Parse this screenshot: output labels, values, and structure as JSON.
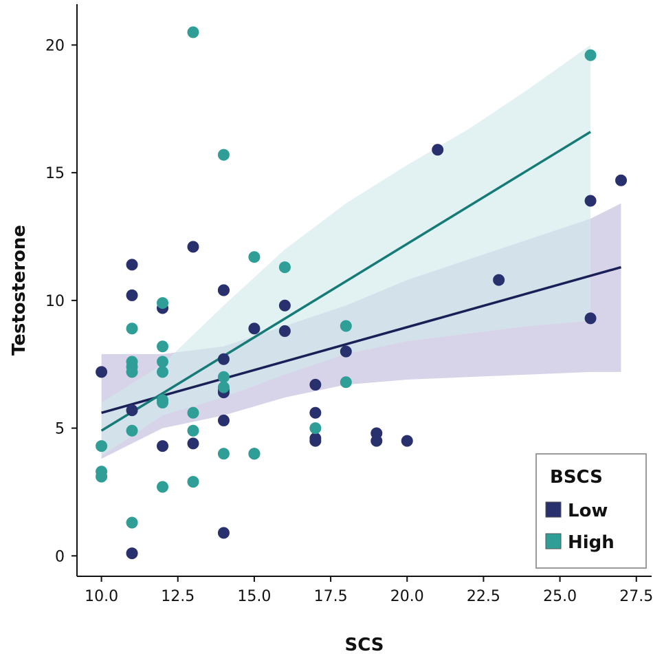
{
  "chart_data": {
    "type": "scatter",
    "title": "",
    "xlabel": "SCS",
    "ylabel": "Testosterone",
    "xlim": [
      9.2,
      28.0
    ],
    "ylim": [
      -0.8,
      21.6
    ],
    "xticks": [
      10.0,
      12.5,
      15.0,
      17.5,
      20.0,
      22.5,
      25.0,
      27.5
    ],
    "xtick_labels": [
      "10.0",
      "12.5",
      "15.0",
      "17.5",
      "20.0",
      "22.5",
      "25.0",
      "27.5"
    ],
    "yticks": [
      0,
      5,
      10,
      15,
      20
    ],
    "ytick_labels": [
      "0",
      "5",
      "10",
      "15",
      "20"
    ],
    "legend": {
      "title": "BSCS",
      "position": "bottom-right"
    },
    "series": [
      {
        "name": "Low",
        "color": "#29306e",
        "line_color": "#1a1f56",
        "band_color": "#c9c6e3",
        "points": [
          [
            10,
            7.2
          ],
          [
            11,
            11.4
          ],
          [
            11,
            10.2
          ],
          [
            11,
            5.7
          ],
          [
            11,
            0.1
          ],
          [
            12,
            9.7
          ],
          [
            12,
            4.3
          ],
          [
            13,
            12.1
          ],
          [
            13,
            4.4
          ],
          [
            14,
            10.4
          ],
          [
            14,
            10.4
          ],
          [
            14,
            7.7
          ],
          [
            14,
            6.5
          ],
          [
            14,
            6.4
          ],
          [
            14,
            5.3
          ],
          [
            14,
            0.9
          ],
          [
            15,
            8.9
          ],
          [
            15,
            4.0
          ],
          [
            16,
            9.8
          ],
          [
            16,
            8.8
          ],
          [
            17,
            6.7
          ],
          [
            17,
            5.6
          ],
          [
            17,
            4.5
          ],
          [
            17,
            4.6
          ],
          [
            18,
            8.0
          ],
          [
            19,
            4.8
          ],
          [
            19,
            4.5
          ],
          [
            20,
            4.5
          ],
          [
            21,
            15.9
          ],
          [
            23,
            10.8
          ],
          [
            26,
            13.9
          ],
          [
            26,
            9.3
          ],
          [
            27,
            14.7
          ]
        ],
        "fit": {
          "x": [
            10,
            27
          ],
          "y": [
            5.6,
            11.3
          ]
        },
        "band": {
          "x": [
            10,
            12,
            14,
            16,
            18,
            20,
            22,
            24,
            26,
            27
          ],
          "lower": [
            3.8,
            5.0,
            5.5,
            6.2,
            6.7,
            6.9,
            7.0,
            7.1,
            7.2,
            7.2
          ],
          "upper": [
            7.9,
            7.9,
            8.2,
            9.0,
            9.8,
            10.8,
            11.6,
            12.4,
            13.2,
            13.8
          ]
        }
      },
      {
        "name": "High",
        "color": "#2e9e97",
        "line_color": "#167a76",
        "band_color": "#cfe9ea",
        "points": [
          [
            10,
            4.3
          ],
          [
            10,
            3.3
          ],
          [
            10,
            3.1
          ],
          [
            11,
            8.9
          ],
          [
            11,
            7.6
          ],
          [
            11,
            7.4
          ],
          [
            11,
            7.2
          ],
          [
            11,
            4.9
          ],
          [
            11,
            1.3
          ],
          [
            12,
            9.9
          ],
          [
            12,
            8.2
          ],
          [
            12,
            7.6
          ],
          [
            12,
            7.2
          ],
          [
            12,
            6.1
          ],
          [
            12,
            6.0
          ],
          [
            12,
            2.7
          ],
          [
            13,
            20.5
          ],
          [
            13,
            5.6
          ],
          [
            13,
            4.9
          ],
          [
            13,
            2.9
          ],
          [
            14,
            15.7
          ],
          [
            14,
            7.0
          ],
          [
            14,
            6.6
          ],
          [
            14,
            4.0
          ],
          [
            15,
            11.7
          ],
          [
            15,
            4.0
          ],
          [
            16,
            11.3
          ],
          [
            17,
            5.0
          ],
          [
            18,
            9.0
          ],
          [
            18,
            6.8
          ],
          [
            26,
            19.6
          ]
        ],
        "fit": {
          "x": [
            10,
            26
          ],
          "y": [
            4.9,
            16.6
          ]
        },
        "band": {
          "x": [
            10,
            12,
            14,
            16,
            18,
            20,
            22,
            24,
            26
          ],
          "lower": [
            3.9,
            5.5,
            6.2,
            7.1,
            7.9,
            8.4,
            8.7,
            9.0,
            9.2
          ],
          "upper": [
            6.0,
            7.5,
            9.8,
            12.0,
            13.8,
            15.3,
            16.7,
            18.3,
            20.0
          ]
        }
      }
    ]
  }
}
